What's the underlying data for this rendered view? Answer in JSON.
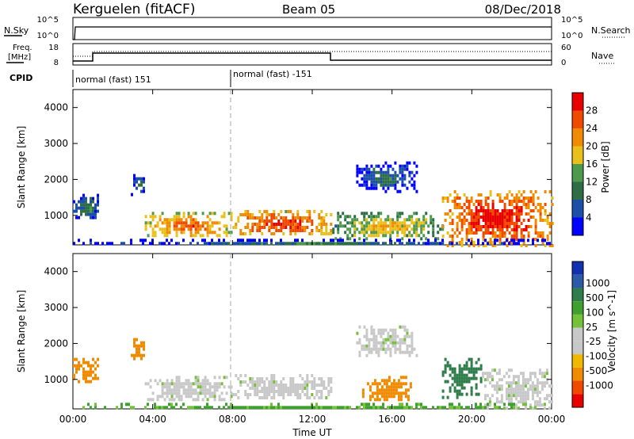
{
  "header": {
    "station": "Kerguelen (fitACF)",
    "beam": "Beam 05",
    "date": "08/Dec/2018"
  },
  "strip1": {
    "left_label": "N.Sky",
    "right_label": "N.Search",
    "left_ticks": [
      "10^5",
      "10^0"
    ],
    "right_ticks": [
      "10^5",
      "10^0"
    ]
  },
  "strip2": {
    "left_label_1": "Freq.",
    "left_label_2": "[MHz]",
    "right_label": "Nave",
    "left_ticks": [
      "18",
      "8"
    ],
    "right_ticks": [
      "60",
      "0"
    ]
  },
  "cpid": {
    "label": "CPID",
    "segments": [
      {
        "text": "normal (fast) 151",
        "start_hour": 0
      },
      {
        "text": "normal (fast) -151",
        "start_hour": 8
      }
    ]
  },
  "colors": {
    "power": [
      "#0000ff",
      "#1b4fa8",
      "#2e6e46",
      "#4d9a4d",
      "#e9c01a",
      "#f08a00",
      "#f04a00",
      "#e80000"
    ],
    "velocity": [
      "#e80000",
      "#f04a00",
      "#f08a00",
      "#f0b800",
      "#c8c8c8",
      "#c8c8c8",
      "#74c23a",
      "#3fa030",
      "#2f7d4a",
      "#2a5aa8",
      "#1030b0"
    ]
  },
  "chart_data": [
    {
      "type": "heatmap",
      "title": "",
      "xlabel": "Time UT",
      "ylabel": "Slant Range [km]",
      "xlim": [
        "00:00",
        "00:00"
      ],
      "x_ticks": [
        "00:00",
        "04:00",
        "08:00",
        "12:00",
        "16:00",
        "20:00",
        "00:00"
      ],
      "ylim": [
        180,
        4500
      ],
      "y_ticks": [
        1000,
        2000,
        3000,
        4000
      ],
      "colorbar": {
        "label": "Power [dB]",
        "ticks": [
          4,
          8,
          12,
          16,
          20,
          24,
          28
        ],
        "range": [
          0,
          32
        ]
      },
      "echo_regions": [
        {
          "t0": 0.0,
          "t1": 1.3,
          "r0": 900,
          "r1": 1600,
          "power_dB": 8
        },
        {
          "t0": 2.9,
          "t1": 3.6,
          "r0": 1600,
          "r1": 2150,
          "power_dB": 6
        },
        {
          "t0": 3.6,
          "t1": 8.0,
          "r0": 400,
          "r1": 1100,
          "power_dB": 22
        },
        {
          "t0": 8.0,
          "t1": 13.0,
          "r0": 450,
          "r1": 1150,
          "power_dB": 24
        },
        {
          "t0": 14.2,
          "t1": 17.2,
          "r0": 1700,
          "r1": 2500,
          "power_dB": 6
        },
        {
          "t0": 13.0,
          "t1": 18.5,
          "r0": 350,
          "r1": 1100,
          "power_dB": 16
        },
        {
          "t0": 18.5,
          "t1": 24.0,
          "r0": 200,
          "r1": 1700,
          "power_dB": 26
        },
        {
          "t0": 0.0,
          "t1": 24.0,
          "r0": 180,
          "r1": 350,
          "power_dB": 6
        }
      ]
    },
    {
      "type": "heatmap",
      "title": "",
      "xlabel": "Time UT",
      "ylabel": "Slant Range [km]",
      "xlim": [
        "00:00",
        "00:00"
      ],
      "x_ticks": [
        "00:00",
        "04:00",
        "08:00",
        "12:00",
        "16:00",
        "20:00",
        "00:00"
      ],
      "ylim": [
        180,
        4500
      ],
      "y_ticks": [
        1000,
        2000,
        3000,
        4000
      ],
      "colorbar": {
        "label": "Velocity [m s^-1]",
        "ticks": [
          1000,
          500,
          100,
          25,
          -25,
          -100,
          -500,
          -1000
        ]
      },
      "echo_regions": [
        {
          "t0": 0.0,
          "t1": 1.3,
          "r0": 900,
          "r1": 1600,
          "velocity": -300
        },
        {
          "t0": 2.9,
          "t1": 3.6,
          "r0": 1600,
          "r1": 2150,
          "velocity": -150
        },
        {
          "t0": 3.6,
          "t1": 8.0,
          "r0": 400,
          "r1": 1100,
          "velocity": 0
        },
        {
          "t0": 8.0,
          "t1": 13.0,
          "r0": 450,
          "r1": 1150,
          "velocity": 0
        },
        {
          "t0": 14.2,
          "t1": 17.2,
          "r0": 1700,
          "r1": 2500,
          "velocity": 0
        },
        {
          "t0": 14.5,
          "t1": 17.0,
          "r0": 400,
          "r1": 1100,
          "velocity": -300
        },
        {
          "t0": 18.5,
          "t1": 20.5,
          "r0": 500,
          "r1": 1600,
          "velocity": 150
        },
        {
          "t0": 20.5,
          "t1": 24.0,
          "r0": 200,
          "r1": 1300,
          "velocity": 0
        },
        {
          "t0": 0.0,
          "t1": 24.0,
          "r0": 180,
          "r1": 350,
          "velocity": 60
        }
      ]
    }
  ]
}
